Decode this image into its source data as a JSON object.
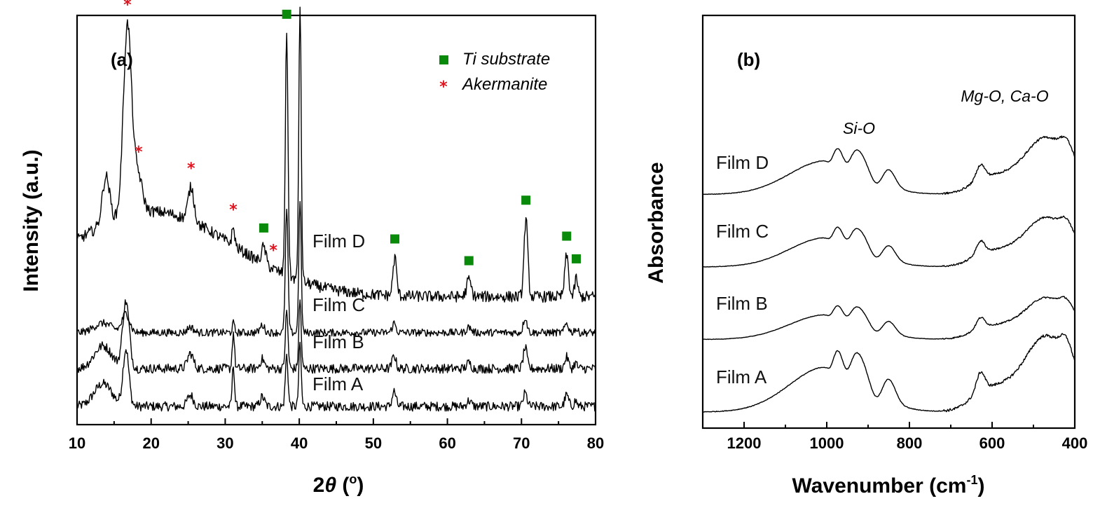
{
  "colors": {
    "ti_marker": "#0a8a0a",
    "akermanite_marker": "#e0141e",
    "trace": "#000000"
  },
  "chart_data": [
    {
      "type": "line",
      "panel_label": "(a)",
      "xlabel": "2θ (°)",
      "xlabel_parts": {
        "symbol": "2",
        "var": "θ",
        "open": " (",
        "unit": "o",
        "close": ")"
      },
      "ylabel": "Intensity (a.u.)",
      "xlim": [
        10,
        80
      ],
      "x_ticks": [
        10,
        20,
        30,
        40,
        50,
        60,
        70,
        80
      ],
      "y_ticks_shown": false,
      "legend": [
        {
          "label": "Ti substrate",
          "marker": "square",
          "color": "#0a8a0a"
        },
        {
          "label": "Akermanite",
          "marker": "asterisk",
          "color": "#e0141e"
        }
      ],
      "series": [
        {
          "name": "Film A",
          "baseline": 0.0,
          "noise": 0.5,
          "peaks": [
            [
              13.5,
              1.2,
              1.2
            ],
            [
              16.6,
              3.0,
              0.4
            ],
            [
              25.3,
              0.6,
              0.4
            ],
            [
              31.1,
              2.2,
              0.15
            ],
            [
              35.0,
              0.5,
              0.3
            ],
            [
              38.3,
              2.7,
              0.18
            ],
            [
              40.1,
              3.3,
              0.16
            ],
            [
              52.8,
              0.8,
              0.25
            ],
            [
              62.9,
              0.3,
              0.3
            ],
            [
              70.5,
              0.7,
              0.25
            ],
            [
              76.1,
              0.6,
              0.25
            ],
            [
              77.3,
              0.3,
              0.2
            ]
          ]
        },
        {
          "name": "Film B",
          "baseline": 2.0,
          "noise": 0.5,
          "peaks": [
            [
              13.5,
              1.2,
              1.2
            ],
            [
              16.6,
              3.5,
              0.45
            ],
            [
              25.3,
              0.8,
              0.4
            ],
            [
              31.1,
              1.9,
              0.15
            ],
            [
              35.0,
              0.5,
              0.3
            ],
            [
              38.3,
              3.0,
              0.18
            ],
            [
              40.1,
              3.6,
              0.16
            ],
            [
              52.8,
              0.7,
              0.25
            ],
            [
              62.9,
              0.3,
              0.3
            ],
            [
              70.5,
              1.1,
              0.25
            ],
            [
              76.1,
              0.6,
              0.25
            ],
            [
              77.3,
              0.3,
              0.2
            ]
          ]
        },
        {
          "name": "Film C",
          "baseline": 3.9,
          "noise": 0.4,
          "peaks": [
            [
              13.5,
              0.5,
              1.2
            ],
            [
              16.6,
              1.0,
              0.5
            ],
            [
              25.3,
              0.3,
              0.4
            ],
            [
              31.1,
              0.5,
              0.15
            ],
            [
              35.0,
              0.4,
              0.3
            ],
            [
              38.3,
              6.5,
              0.18
            ],
            [
              40.1,
              7.0,
              0.16
            ],
            [
              52.8,
              0.5,
              0.25
            ],
            [
              62.9,
              0.3,
              0.3
            ],
            [
              70.5,
              0.8,
              0.25
            ],
            [
              76.1,
              0.5,
              0.25
            ],
            [
              77.3,
              0.2,
              0.2
            ]
          ]
        },
        {
          "name": "Film D",
          "baseline": 5.8,
          "noise": 0.6,
          "hump": [
            4.5,
            20.0,
            11.0
          ],
          "peaks": [
            [
              13.9,
              2.5,
              0.5
            ],
            [
              16.8,
              10.0,
              0.55
            ],
            [
              18.2,
              2.0,
              0.6
            ],
            [
              25.4,
              1.8,
              0.4
            ],
            [
              31.1,
              0.9,
              0.2
            ],
            [
              35.2,
              0.9,
              0.3
            ],
            [
              38.3,
              12.8,
              0.18
            ],
            [
              40.1,
              14.6,
              0.16
            ],
            [
              52.9,
              2.0,
              0.25
            ],
            [
              62.9,
              0.9,
              0.3
            ],
            [
              70.6,
              4.1,
              0.25
            ],
            [
              76.1,
              2.2,
              0.25
            ],
            [
              77.4,
              1.0,
              0.2
            ]
          ]
        }
      ],
      "annotations": {
        "ti_substrate_positions": [
          35.2,
          38.3,
          40.1,
          52.9,
          62.9,
          70.6,
          76.1,
          77.4
        ],
        "akermanite_positions": [
          16.8,
          18.3,
          25.4,
          31.1,
          36.5
        ]
      }
    },
    {
      "type": "line",
      "panel_label": "(b)",
      "xlabel": "Wavenumber (cm-1)",
      "xlabel_parts": {
        "base": "Wavenumber (cm",
        "sup": "-1",
        "close": ")"
      },
      "ylabel": "Absorbance",
      "xlim": [
        1300,
        400
      ],
      "x_ticks": [
        1200,
        1000,
        800,
        600,
        400
      ],
      "y_ticks_shown": false,
      "annotations": [
        {
          "text": "Si-O",
          "x": 930
        },
        {
          "text": "Mg-O, Ca-O",
          "x": 480
        }
      ],
      "series": [
        {
          "name": "Film A",
          "offset": 0.0,
          "scale": 1.0
        },
        {
          "name": "Film B",
          "offset": 1.15,
          "scale": 0.55
        },
        {
          "name": "Film C",
          "offset": 2.3,
          "scale": 0.65
        },
        {
          "name": "Film D",
          "offset": 3.45,
          "scale": 0.75
        }
      ],
      "shape": {
        "broad": [
          [
            1000,
            1.3,
            90
          ]
        ],
        "bands": [
          [
            975,
            0.5,
            12
          ],
          [
            925,
            0.8,
            22
          ],
          [
            850,
            0.65,
            16
          ],
          [
            628,
            0.55,
            10
          ],
          [
            470,
            1.4,
            45
          ],
          [
            420,
            0.6,
            15
          ]
        ],
        "step": [
          650,
          0.8,
          20
        ],
        "dips": [
          [
            990,
            0.2,
            8
          ],
          [
            950,
            0.35,
            10
          ],
          [
            880,
            0.3,
            14
          ]
        ]
      }
    }
  ]
}
